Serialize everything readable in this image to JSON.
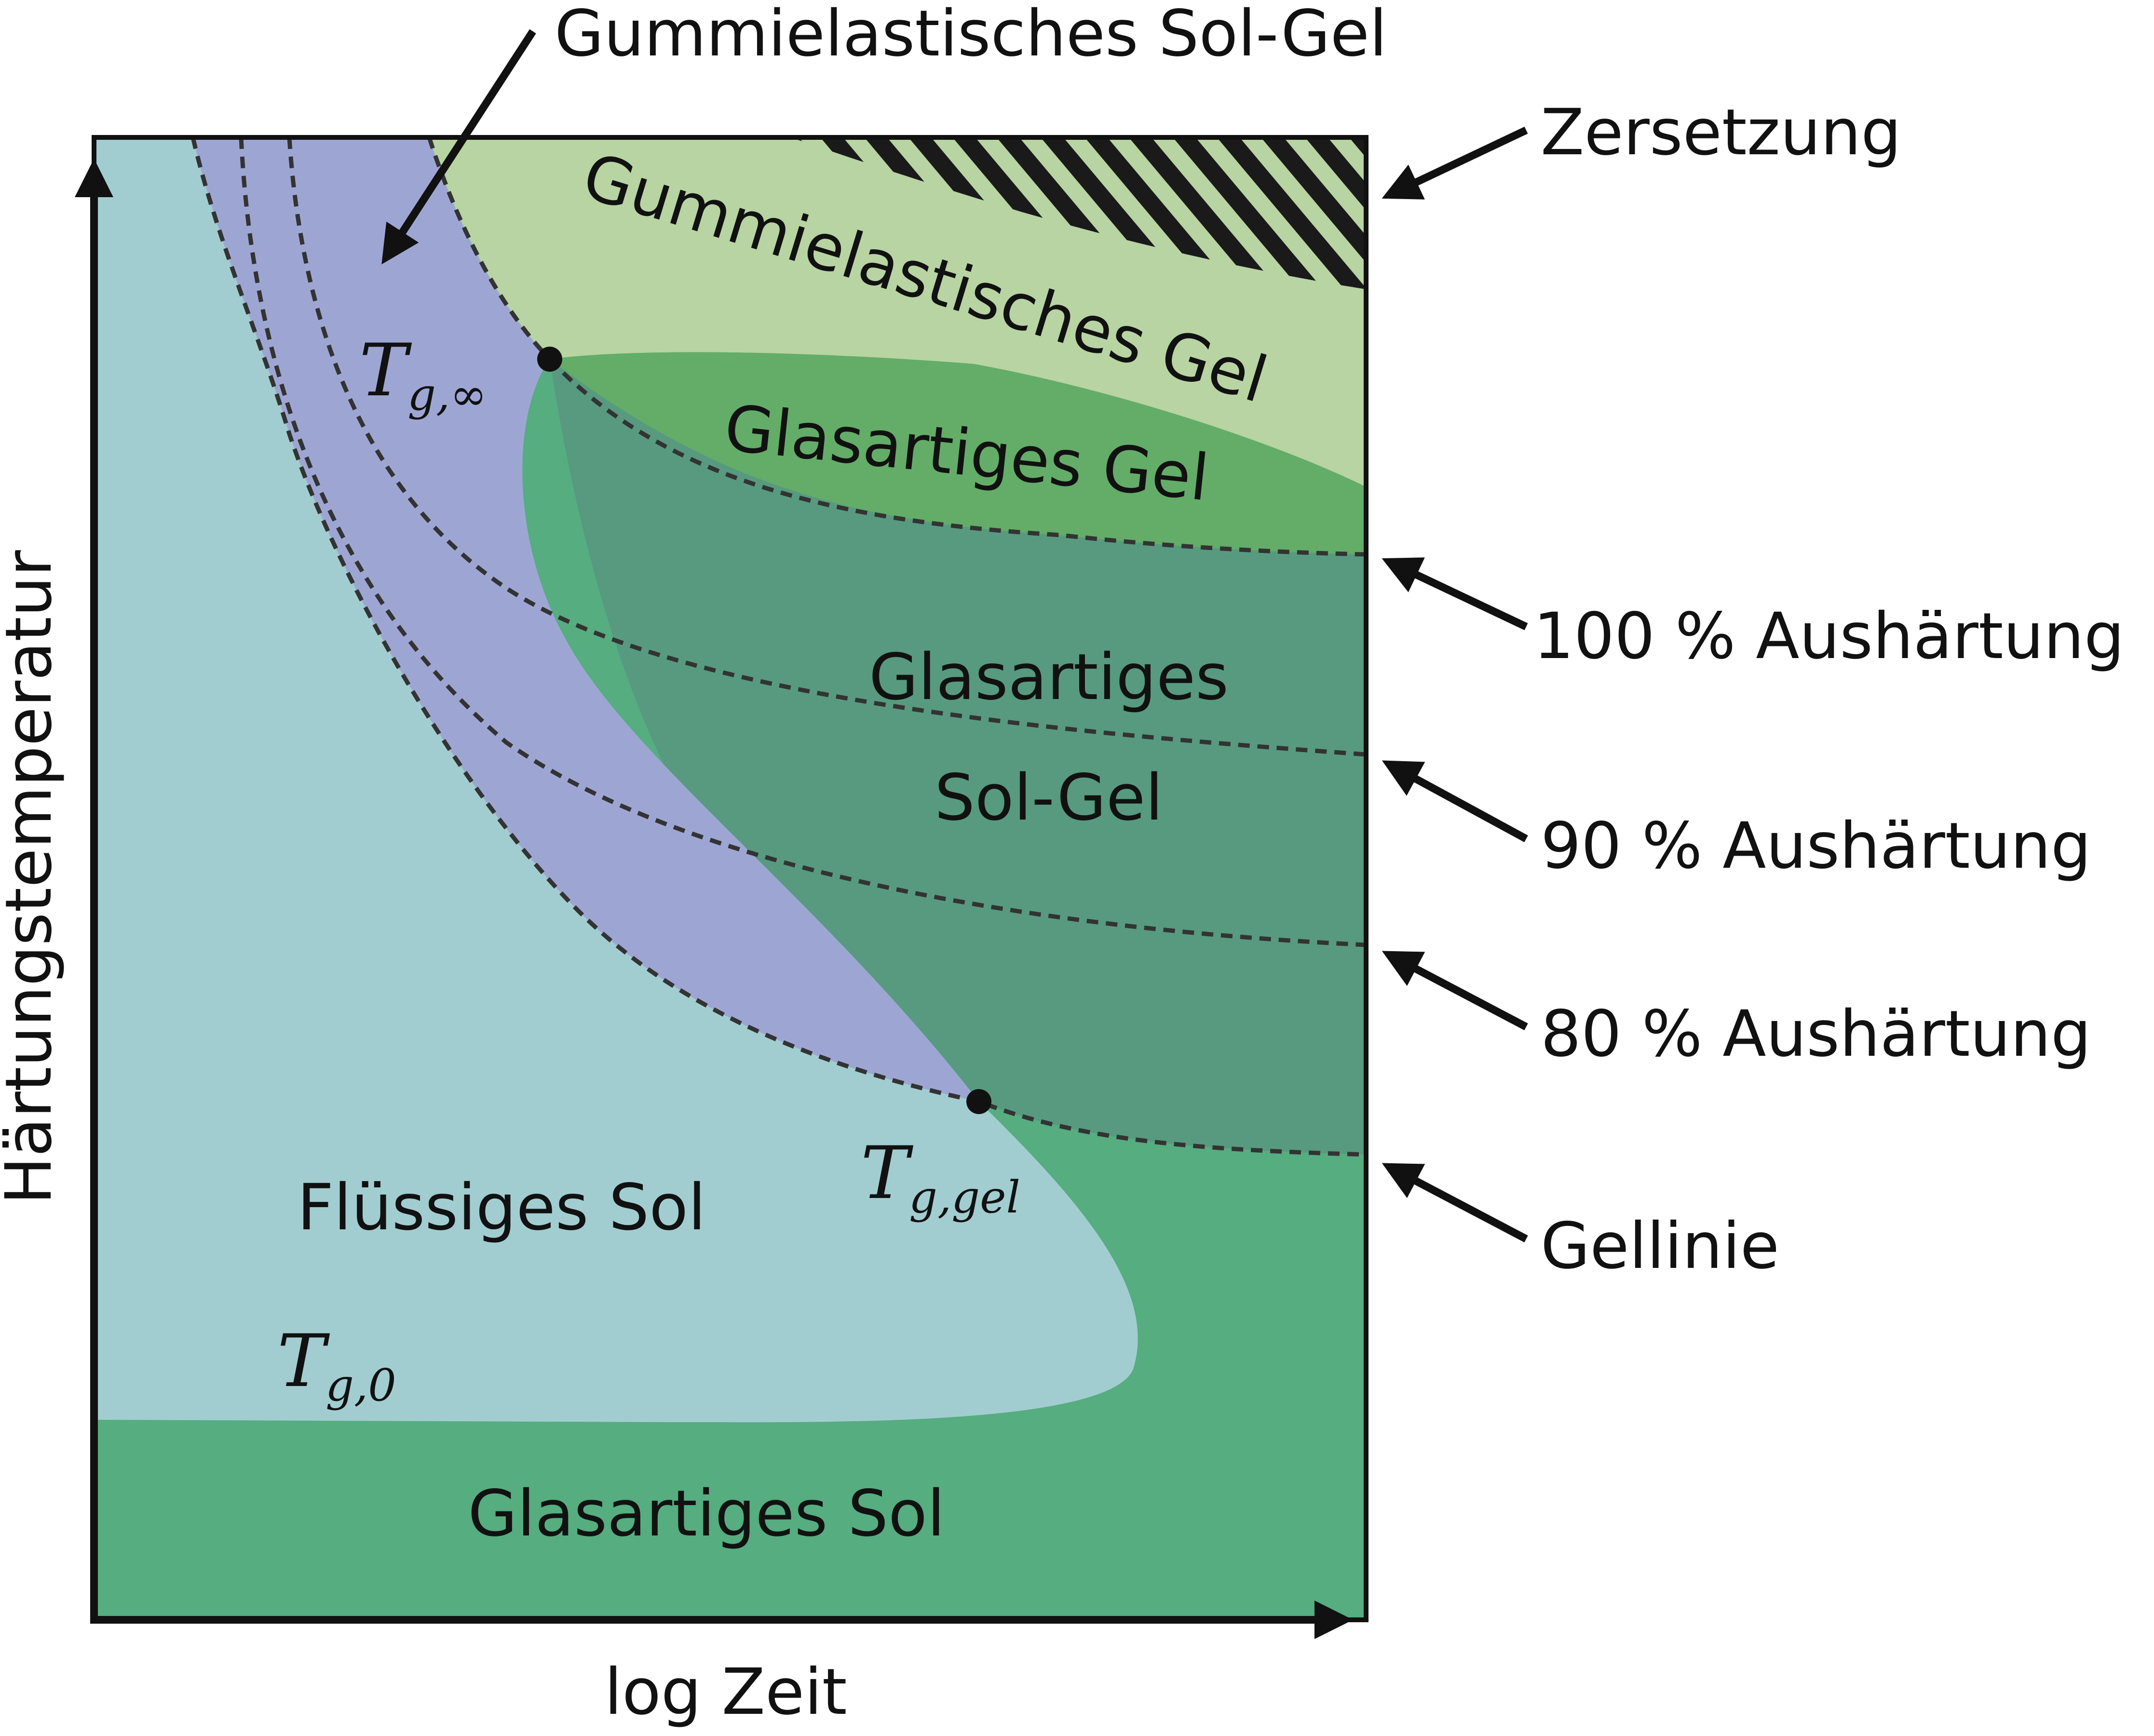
{
  "regions": {
    "liquid_sol": "Flüssiges Sol",
    "glassy_sol": "Glasartiges Sol",
    "rubbery_gel": "Gummielastisches Gel",
    "glassy_gel": "Glasartiges Gel",
    "glassy_solgel_line1": "Glasartiges",
    "glassy_solgel_line2": "Sol-Gel"
  },
  "callouts": {
    "rubbery_solgel": "Gummielastisches Sol-Gel",
    "decomposition": "Zersetzung",
    "cure_100": "100 % Aushärtung",
    "cure_90": "90 % Aushärtung",
    "cure_80": "80 % Aushärtung",
    "gel_line": "Gellinie"
  },
  "temperatures": {
    "tg_inf": {
      "base": "T",
      "sub": "g,∞"
    },
    "tg_gel": {
      "base": "T",
      "sub": "g,gel"
    },
    "tg_0": {
      "base": "T",
      "sub": "g,0"
    }
  },
  "axes": {
    "x_label": "log Zeit",
    "y_label": "Härtungstemperatur"
  },
  "colors": {
    "liquid_sol": "#a2cdd0",
    "glassy_sol": "#55ad80",
    "rubbery_solgel": "#9da6d3",
    "glassy_solgel": "#579a80",
    "glassy_gel": "#63ad68",
    "rubbery_gel": "#b7d4a2",
    "outline": "#111111",
    "dashed_line": "#333333"
  }
}
